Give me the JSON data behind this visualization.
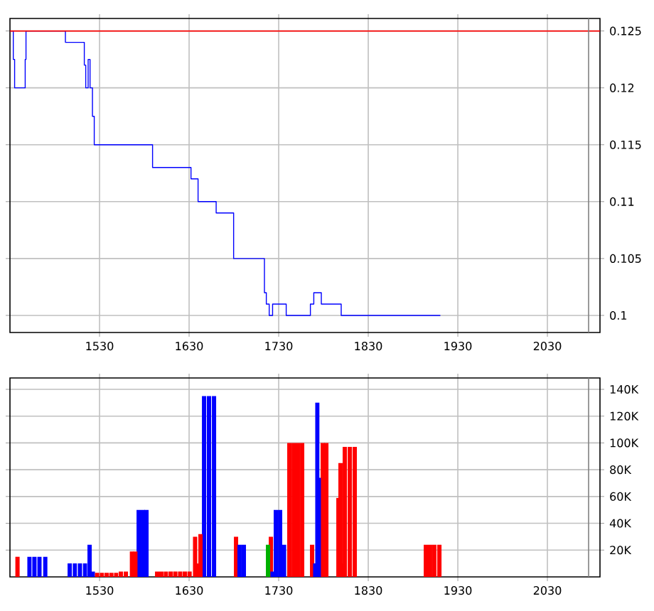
{
  "chart_data": [
    {
      "type": "step",
      "x": [
        1430,
        1433.7,
        1435.2,
        1447,
        1447.9,
        1491.9,
        1513,
        1514.6,
        1517.3,
        1519.4,
        1522.1,
        1524.1,
        1589.2,
        1632.1,
        1640,
        1660.2,
        1679.7,
        1714.1,
        1716.2,
        1719.4,
        1723.2,
        1738.4,
        1765.4,
        1769.2,
        1777.6,
        1799.8,
        1910.5
      ],
      "values": [
        0.125,
        0.1225,
        0.12,
        0.1225,
        0.125,
        0.124,
        0.122,
        0.12,
        0.1225,
        0.12,
        0.1175,
        0.115,
        0.113,
        0.112,
        0.11,
        0.109,
        0.105,
        0.102,
        0.101,
        0.1,
        0.101,
        0.1,
        0.101,
        0.102,
        0.101,
        0.1,
        0.1
      ],
      "color": "#0000ff",
      "xlim": [
        1430,
        2088.7
      ],
      "ylim": [
        0.0985,
        0.1261
      ],
      "xticks": [
        1530,
        1630,
        1730,
        1830,
        1930,
        2030
      ],
      "yticks": [
        0.1,
        0.105,
        0.11,
        0.115,
        0.12,
        0.125
      ],
      "grid": true,
      "ref_lines": [
        {
          "axis": "y",
          "value": 0.125,
          "color": "#ff0000"
        },
        {
          "axis": "x",
          "value": 2076,
          "color": "#808080"
        }
      ]
    },
    {
      "type": "bar",
      "x": [
        1438.4,
        1451.7,
        1457.3,
        1462.9,
        1469.4,
        1496.7,
        1502.5,
        1508.1,
        1513.7,
        1518.9,
        1522.5,
        1527.3,
        1532.7,
        1537.9,
        1543.2,
        1548.6,
        1553.8,
        1559.4,
        1566.2,
        1570,
        1573.7,
        1578.4,
        1582.4,
        1594.3,
        1599,
        1604.1,
        1609.4,
        1614.6,
        1620,
        1625.2,
        1630.5,
        1636.7,
        1639.2,
        1642.7,
        1646.7,
        1652.2,
        1657.8,
        1682.4,
        1686.3,
        1691.1,
        1718.1,
        1721.3,
        1723.2,
        1726.8,
        1731.6,
        1736,
        1741.9,
        1746.7,
        1751.4,
        1756.2,
        1767.3,
        1770.8,
        1773.2,
        1774.9,
        1779.2,
        1783.2,
        1796.7,
        1799,
        1800.6,
        1803.8,
        1809.4,
        1814.9,
        1894.3,
        1899,
        1903.8,
        1909.4
      ],
      "values": [
        15000,
        15000,
        15000,
        15000,
        15000,
        10000,
        10000,
        10000,
        10000,
        24000,
        4000,
        3000,
        3000,
        3000,
        3000,
        3000,
        4000,
        4000,
        19000,
        19000,
        50000,
        50000,
        50000,
        4000,
        4000,
        4000,
        4000,
        4000,
        4000,
        4000,
        4000,
        30000,
        10000,
        32000,
        135000,
        135000,
        135000,
        30000,
        24000,
        24000,
        24000,
        30000,
        4000,
        50000,
        50000,
        24000,
        100000,
        100000,
        100000,
        100000,
        24000,
        10000,
        130000,
        74000,
        100000,
        100000,
        59000,
        85000,
        10000,
        97000,
        97000,
        97000,
        24000,
        24000,
        24000,
        24000
      ],
      "colors": [
        "#ff0000",
        "#0000ff",
        "#0000ff",
        "#0000ff",
        "#0000ff",
        "#0000ff",
        "#0000ff",
        "#0000ff",
        "#0000ff",
        "#0000ff",
        "#0000ff",
        "#ff0000",
        "#ff0000",
        "#ff0000",
        "#ff0000",
        "#ff0000",
        "#ff0000",
        "#ff0000",
        "#ff0000",
        "#ff0000",
        "#0000ff",
        "#0000ff",
        "#0000ff",
        "#ff0000",
        "#ff0000",
        "#ff0000",
        "#ff0000",
        "#ff0000",
        "#ff0000",
        "#ff0000",
        "#ff0000",
        "#ff0000",
        "#ff0000",
        "#ff0000",
        "#0000ff",
        "#0000ff",
        "#0000ff",
        "#ff0000",
        "#0000ff",
        "#0000ff",
        "#00b000",
        "#ff0000",
        "#0000ff",
        "#0000ff",
        "#0000ff",
        "#0000ff",
        "#ff0000",
        "#ff0000",
        "#ff0000",
        "#ff0000",
        "#ff0000",
        "#0000ff",
        "#0000ff",
        "#0000ff",
        "#ff0000",
        "#ff0000",
        "#ff0000",
        "#ff0000",
        "#ff0000",
        "#ff0000",
        "#ff0000",
        "#ff0000",
        "#ff0000",
        "#ff0000",
        "#ff0000",
        "#ff0000"
      ],
      "xlim": [
        1430,
        2088.7
      ],
      "ylim": [
        0,
        148500
      ],
      "xticks": [
        1530,
        1630,
        1730,
        1830,
        1930,
        2030
      ],
      "yticks": [
        {
          "value": 20000,
          "label": "20K"
        },
        {
          "value": 40000,
          "label": "40K"
        },
        {
          "value": 60000,
          "label": "60K"
        },
        {
          "value": 80000,
          "label": "80K"
        },
        {
          "value": 100000,
          "label": "100K"
        },
        {
          "value": 120000,
          "label": "120K"
        },
        {
          "value": 140000,
          "label": "140K"
        }
      ],
      "grid": true,
      "ref_lines": [
        {
          "axis": "x",
          "value": 2076,
          "color": "#808080"
        }
      ]
    }
  ]
}
